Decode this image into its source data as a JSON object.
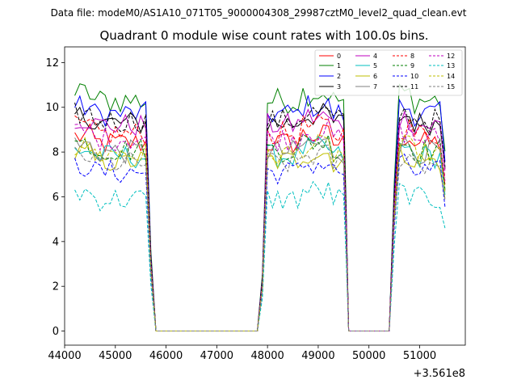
{
  "suptitle": "Data file: modeM0/AS1A10_071T05_9000004308_29987cztM0_level2_quad_clean.evt",
  "chart_data": {
    "type": "line",
    "title": "Quadrant 0 module wise count rates with 100.0s bins.",
    "xlabel": "",
    "ylabel": "",
    "x_offset_label": "+3.561e8",
    "xlim": [
      44000,
      51900
    ],
    "ylim": [
      -0.63,
      12.7
    ],
    "x_ticks": [
      44000,
      45000,
      46000,
      47000,
      48000,
      49000,
      50000,
      51000
    ],
    "x_tick_labels": [
      "44000",
      "45000",
      "46000",
      "47000",
      "48000",
      "49000",
      "50000",
      "51000"
    ],
    "y_ticks": [
      0,
      2,
      4,
      6,
      8,
      10,
      12
    ],
    "y_tick_labels": [
      "0",
      "2",
      "4",
      "6",
      "8",
      "10",
      "12"
    ],
    "grid": false,
    "legend_position": "upper-right",
    "segments": [
      {
        "start": 44200,
        "end": 45800,
        "step": 100,
        "ramp_start_from_end": 3,
        "drop_to_zero_at_end": true
      },
      {
        "start": 47700,
        "end": 49700,
        "step": 100,
        "ramp_start_from_begin": 3,
        "ramp_end": true
      },
      {
        "start": 50400,
        "end": 51500,
        "step": 100,
        "ramp_start_from_begin": 2,
        "ramp_end": true
      }
    ],
    "zero_interval_1": {
      "start": 45800,
      "end": 47800,
      "value": 0
    },
    "zero_interval_2": {
      "start": 49600,
      "end": 50400,
      "value": 0
    },
    "series": [
      {
        "name": "0",
        "color": "#ff0000",
        "dash": "solid",
        "level": 8.4
      },
      {
        "name": "1",
        "color": "#008000",
        "dash": "solid",
        "level": 10.3
      },
      {
        "name": "2",
        "color": "#0000ff",
        "dash": "solid",
        "level": 9.7
      },
      {
        "name": "3",
        "color": "#000000",
        "dash": "solid",
        "level": 9.3
      },
      {
        "name": "4",
        "color": "#bf00bf",
        "dash": "solid",
        "level": 9.2
      },
      {
        "name": "5",
        "color": "#00bfbf",
        "dash": "solid",
        "level": 7.8
      },
      {
        "name": "6",
        "color": "#bfbf00",
        "dash": "solid",
        "level": 7.6
      },
      {
        "name": "7",
        "color": "#808080",
        "dash": "solid",
        "level": 8.0
      },
      {
        "name": "8",
        "color": "#ff0000",
        "dash": "dashed",
        "level": 8.8
      },
      {
        "name": "9",
        "color": "#008000",
        "dash": "dashed",
        "level": 8.1
      },
      {
        "name": "10",
        "color": "#0000ff",
        "dash": "dashed",
        "level": 7.1
      },
      {
        "name": "11",
        "color": "#000000",
        "dash": "dashed",
        "level": 9.4
      },
      {
        "name": "12",
        "color": "#bf00bf",
        "dash": "dashed",
        "level": 8.6
      },
      {
        "name": "13",
        "color": "#00bfbf",
        "dash": "dashed",
        "level": 5.9
      },
      {
        "name": "14",
        "color": "#bfbf00",
        "dash": "dashed",
        "level": 7.9
      },
      {
        "name": "15",
        "color": "#808080",
        "dash": "dashed",
        "level": 7.5
      }
    ]
  }
}
